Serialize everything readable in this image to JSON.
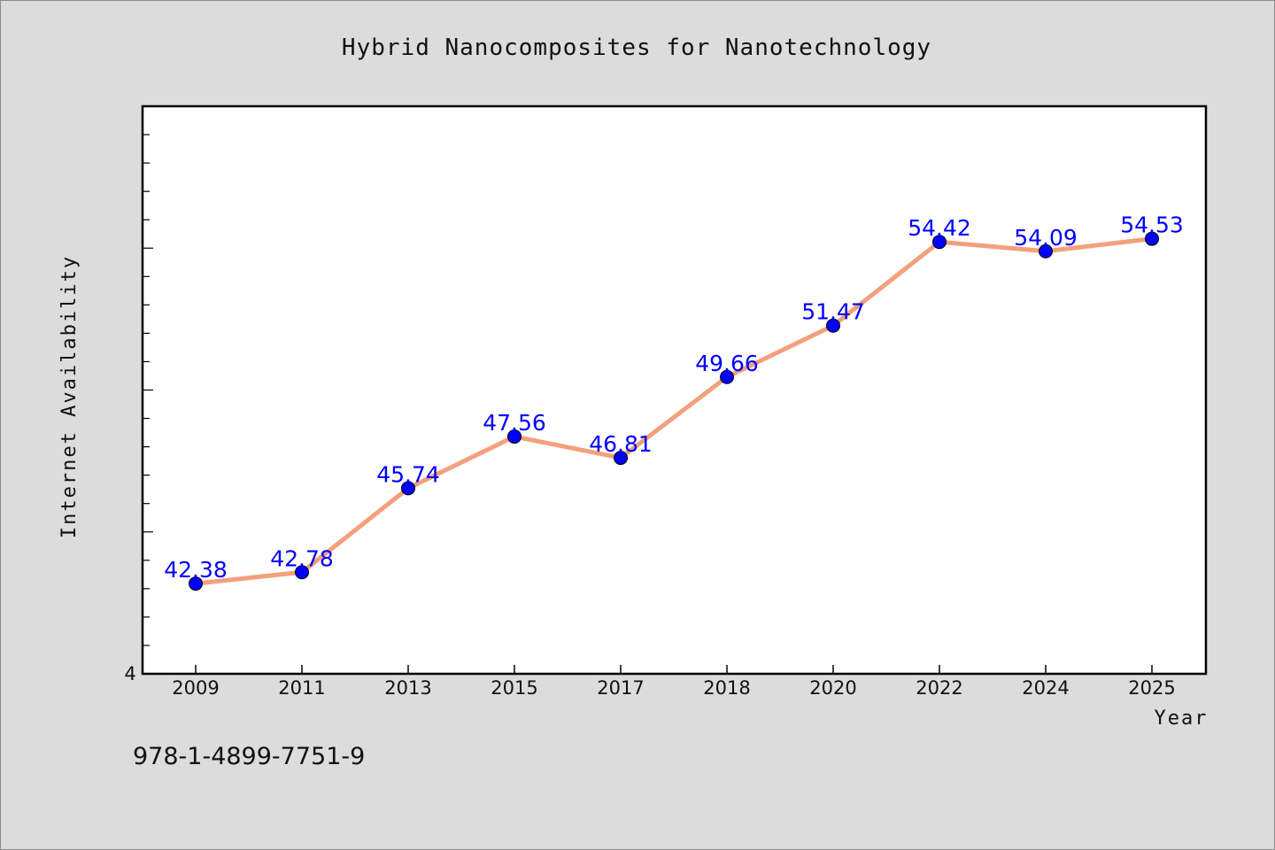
{
  "chart_data": {
    "type": "line",
    "title": "Hybrid Nanocomposites for Nanotechnology",
    "xlabel": "Year",
    "ylabel": "Internet Availability",
    "categories": [
      "2009",
      "2011",
      "2013",
      "2015",
      "2017",
      "2018",
      "2020",
      "2022",
      "2024",
      "2025"
    ],
    "series": [
      {
        "values": [
          42.38,
          42.78,
          45.74,
          47.56,
          46.81,
          49.66,
          51.47,
          54.42,
          54.09,
          54.53
        ],
        "labels": [
          "42.38",
          "42.78",
          "45.74",
          "47.56",
          "46.81",
          "49.66",
          "51.47",
          "54.42",
          "54.09",
          "54.53"
        ]
      }
    ],
    "ylim": [
      39.2,
      59.2
    ],
    "y_tick_labels": [
      "4"
    ],
    "grid": false,
    "legend": "none",
    "colors": {
      "line": "#f4a07c",
      "marker": "#0000ff",
      "data_label": "#0000ff",
      "background": "#dcdcdc",
      "plot_background": "#ffffff"
    }
  },
  "footer": {
    "isbn": "978-1-4899-7751-9"
  }
}
